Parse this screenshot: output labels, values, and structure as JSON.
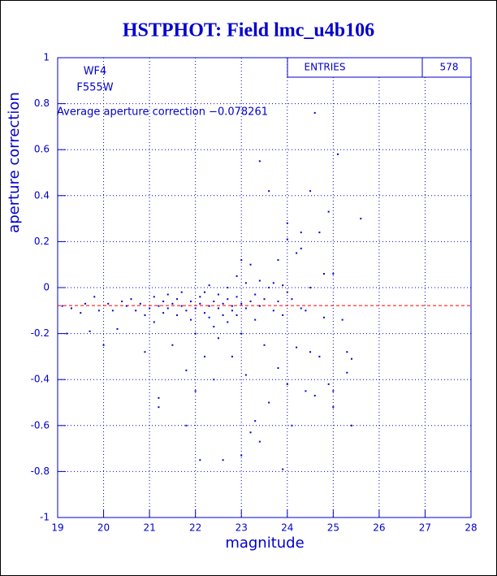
{
  "chart_data": {
    "type": "scatter",
    "title": "HSTPHOT: Field lmc_u4b106",
    "x_label": "magnitude",
    "y_label": "aperture correction",
    "annotations": [
      "WF4",
      "F555W",
      "Average aperture correction −0.078261"
    ],
    "stats": {
      "label": "ENTRIES",
      "value": 578
    },
    "mean_line": -0.078261,
    "mean_line_color": "#ff0000",
    "color": "#0000cc",
    "grid": true,
    "xlim": [
      19,
      28
    ],
    "ylim": [
      -1,
      1
    ],
    "xticks": [
      19,
      20,
      21,
      22,
      23,
      24,
      25,
      26,
      27,
      28
    ],
    "yticks": [
      -1,
      -0.8,
      -0.6,
      -0.4,
      -0.2,
      0,
      0.2,
      0.4,
      0.6,
      0.8,
      1
    ],
    "x": [
      19.1,
      19.2,
      19.3,
      19.5,
      19.6,
      19.7,
      19.8,
      19.9,
      20.0,
      20.1,
      20.2,
      20.3,
      20.4,
      20.5,
      20.6,
      20.7,
      20.8,
      20.9,
      21.0,
      20.9,
      21.1,
      21.1,
      21.2,
      21.2,
      21.2,
      21.3,
      21.3,
      21.4,
      21.4,
      21.5,
      21.5,
      21.6,
      21.6,
      21.7,
      21.7,
      21.8,
      21.8,
      21.8,
      21.9,
      21.9,
      22.0,
      22.0,
      22.0,
      22.1,
      22.1,
      22.1,
      22.2,
      22.2,
      22.2,
      22.3,
      22.3,
      22.3,
      22.4,
      22.4,
      22.4,
      22.5,
      22.5,
      22.5,
      22.6,
      22.6,
      22.6,
      22.7,
      22.7,
      22.7,
      22.8,
      22.8,
      22.8,
      22.9,
      22.9,
      22.9,
      23.0,
      23.0,
      23.0,
      23.0,
      23.1,
      23.1,
      23.1,
      23.2,
      23.2,
      23.2,
      23.3,
      23.3,
      23.3,
      23.4,
      23.4,
      23.4,
      23.4,
      23.5,
      23.5,
      23.6,
      23.6,
      23.6,
      23.7,
      23.7,
      23.8,
      23.8,
      23.8,
      23.9,
      23.9,
      23.9,
      24.0,
      24.0,
      24.0,
      24.0,
      24.1,
      24.1,
      24.2,
      24.2,
      24.3,
      24.3,
      24.3,
      24.4,
      24.4,
      24.5,
      24.5,
      24.5,
      24.6,
      24.6,
      24.7,
      24.7,
      24.8,
      24.8,
      24.9,
      24.9,
      25.0,
      25.0,
      25.0,
      25.1,
      25.2,
      25.3,
      25.3,
      25.4,
      25.4,
      25.6
    ],
    "values": [
      -0.08,
      -0.2,
      -0.09,
      -0.11,
      -0.07,
      -0.19,
      -0.04,
      -0.1,
      -0.25,
      -0.07,
      -0.1,
      -0.18,
      -0.06,
      -0.08,
      -0.05,
      -0.1,
      -0.07,
      -0.12,
      -0.09,
      -0.28,
      -0.04,
      -0.15,
      -0.48,
      -0.52,
      -0.08,
      -0.06,
      -0.11,
      -0.03,
      -0.09,
      -0.07,
      -0.25,
      -0.05,
      -0.12,
      -0.08,
      -0.02,
      -0.1,
      -0.36,
      -0.6,
      -0.06,
      -0.14,
      -0.09,
      -0.2,
      -0.45,
      -0.04,
      -0.07,
      -0.75,
      -0.11,
      -0.02,
      -0.3,
      -0.08,
      -0.13,
      0.01,
      -0.06,
      -0.17,
      -0.4,
      -0.09,
      -0.03,
      -0.22,
      -0.07,
      -0.12,
      -0.75,
      -0.05,
      0.0,
      -0.15,
      -0.1,
      -0.08,
      -0.3,
      -0.04,
      -0.12,
      0.05,
      -0.07,
      -0.73,
      0.12,
      -0.2,
      -0.09,
      0.02,
      -0.38,
      -0.06,
      -0.63,
      0.1,
      -0.03,
      -0.58,
      -0.14,
      0.55,
      -0.67,
      0.03,
      -0.08,
      -0.05,
      -0.25,
      0.42,
      0.0,
      -0.5,
      -0.1,
      0.02,
      0.12,
      -0.06,
      -0.35,
      -0.12,
      0.01,
      -0.79,
      0.28,
      0.21,
      -0.02,
      -0.42,
      -0.05,
      -0.6,
      0.15,
      -0.26,
      0.17,
      -0.09,
      0.24,
      -0.45,
      -0.1,
      0.42,
      -0.28,
      0.0,
      0.76,
      -0.47,
      0.24,
      -0.3,
      0.06,
      -0.13,
      0.33,
      -0.42,
      0.06,
      -0.52,
      -0.45,
      0.58,
      -0.14,
      -0.28,
      -0.37,
      -0.6,
      -0.31,
      0.3
    ]
  }
}
